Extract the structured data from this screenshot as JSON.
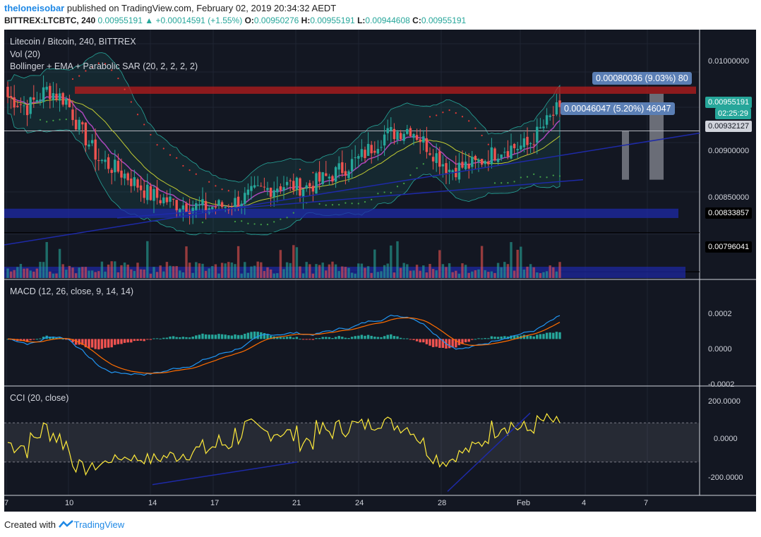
{
  "header": {
    "user": "theloneisobar",
    "published_text": "published on TradingView.com, February 02, 2019 20:34:32 AEDT",
    "symbol": "BITTREX:LTCBTC, 240",
    "last_price": "0.00955191",
    "change": "+0.00014591 (+1.55%)",
    "o_label": "O:",
    "o_value": "0.00950276",
    "h_label": "H:",
    "h_value": "0.00955191",
    "l_label": "L:",
    "l_value": "0.00944608",
    "c_label": "C:",
    "c_value": "0.00955191"
  },
  "legend": {
    "title": "Litecoin / Bitcoin, 240, BITTREX",
    "vol": "Vol (20)",
    "indicators": "Bollinger + EMA + Parabolic SAR (20, 2, 2, 2, 2)",
    "macd": "MACD (12, 26, close, 9, 14, 14)",
    "cci": "CCI (20, close)"
  },
  "price_axis": {
    "ticks": [
      "0.01000000",
      "0.00900000",
      "0.00850000"
    ],
    "tags": [
      {
        "text": "0.00955191",
        "value": 0.00955191,
        "bg": "#26a69a",
        "fg": "#ffffff"
      },
      {
        "text": "02:25:29",
        "value": 0.0094,
        "bg": "#26a69a",
        "fg": "#ffffff"
      },
      {
        "text": "0.00932127",
        "value": 0.00932127,
        "bg": "#d1d4dc",
        "fg": "#131722"
      },
      {
        "text": "0.00833857",
        "value": 0.00833857,
        "bg": "#000000",
        "fg": "#ffffff"
      },
      {
        "text": "0.00796041",
        "value": 0.00796041,
        "bg": "#000000",
        "fg": "#ffffff"
      }
    ]
  },
  "measure_labels": {
    "large": "0.00080036 (9.03%) 80",
    "small": "0.00046047 (5.20%) 46047"
  },
  "macd_axis": {
    "ticks": [
      "0.0002",
      "0.0000",
      "-0.0002"
    ]
  },
  "cci_axis": {
    "ticks": [
      "200.0000",
      "0.0000",
      "-200.0000"
    ]
  },
  "time_axis": {
    "ticks": [
      "7",
      "10",
      "14",
      "17",
      "21",
      "24",
      "28",
      "Feb",
      "4",
      "7"
    ]
  },
  "footer": {
    "created_with": "Created with",
    "brand": "TradingView"
  },
  "colors": {
    "background": "#131722",
    "up": "#26a69a",
    "down": "#ef5350",
    "cci_line": "#ffeb3b",
    "macd_line": "#2196f3",
    "signal_line": "#ff6d00",
    "support_line": "#1e2aa8",
    "resistance_zone": "#b71c1c"
  },
  "chart_data": {
    "type": "candlestick",
    "title": "Litecoin / Bitcoin, 240, BITTREX",
    "price_range": [
      0.0079,
      0.0103
    ],
    "x_ticks": [
      "7",
      "10",
      "14",
      "17",
      "21",
      "24",
      "28",
      "Feb",
      "4",
      "7"
    ],
    "close_anchors": [
      {
        "i": 0,
        "c": 0.00965
      },
      {
        "i": 6,
        "c": 0.00955
      },
      {
        "i": 12,
        "c": 0.00972
      },
      {
        "i": 18,
        "c": 0.00962
      },
      {
        "i": 22,
        "c": 0.00935
      },
      {
        "i": 28,
        "c": 0.00905
      },
      {
        "i": 36,
        "c": 0.0089
      },
      {
        "i": 44,
        "c": 0.0087
      },
      {
        "i": 52,
        "c": 0.00862
      },
      {
        "i": 60,
        "c": 0.00858
      },
      {
        "i": 68,
        "c": 0.0086
      },
      {
        "i": 76,
        "c": 0.00872
      },
      {
        "i": 84,
        "c": 0.0088
      },
      {
        "i": 92,
        "c": 0.00878
      },
      {
        "i": 100,
        "c": 0.0089
      },
      {
        "i": 108,
        "c": 0.00905
      },
      {
        "i": 116,
        "c": 0.00928
      },
      {
        "i": 124,
        "c": 0.00935
      },
      {
        "i": 130,
        "c": 0.00915
      },
      {
        "i": 136,
        "c": 0.00895
      },
      {
        "i": 144,
        "c": 0.009
      },
      {
        "i": 152,
        "c": 0.00915
      },
      {
        "i": 160,
        "c": 0.00918
      },
      {
        "i": 166,
        "c": 0.0094
      },
      {
        "i": 170,
        "c": 0.00955191
      }
    ],
    "resistance_zone": [
      0.00968,
      0.00975
    ],
    "support_zone": [
      0.00848,
      0.00857
    ],
    "horizontal_lines": [
      0.00932127,
      0.00833857,
      0.00796041
    ],
    "macd_range": [
      -0.00022,
      0.00028
    ],
    "cci_range": [
      -270,
      270
    ],
    "cci_band": [
      -100,
      100
    ]
  }
}
